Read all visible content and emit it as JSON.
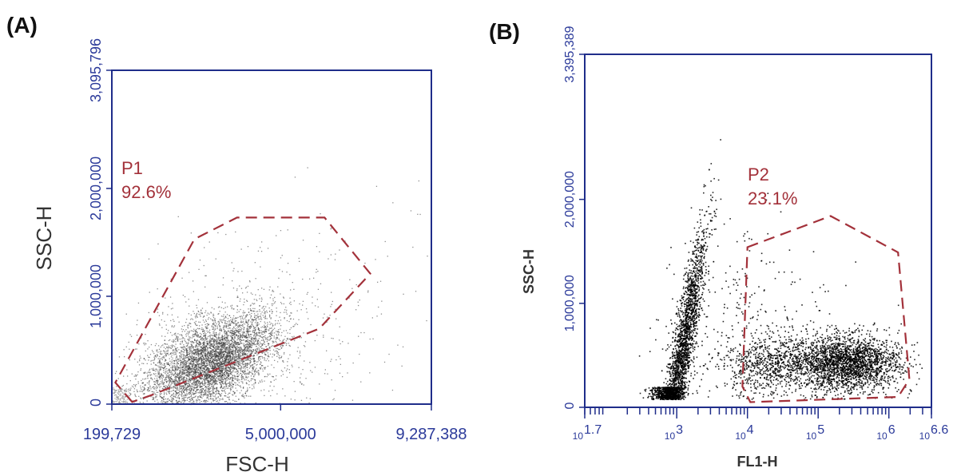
{
  "colors": {
    "axis": "#1f2d8a",
    "tick_text": "#2b3a9a",
    "gate": "#a3313a",
    "dots_a": "#333333",
    "dots_b": "#000000"
  },
  "chart_data": [
    {
      "type": "scatter",
      "panel_label": "(A)",
      "xlabel": "FSC-H",
      "ylabel": "SSC-H",
      "x_scale": "linear",
      "y_scale": "linear",
      "xlim": [
        199729,
        9287388
      ],
      "ylim": [
        0,
        3095796
      ],
      "x_ticks": [
        {
          "value": 199729,
          "label": "199,729"
        },
        {
          "value": 5000000,
          "label": "5,000,000"
        },
        {
          "value": 9287388,
          "label": "9,287,388"
        }
      ],
      "y_ticks": [
        {
          "value": 0,
          "label": "0"
        },
        {
          "value": 1000000,
          "label": "1,000,000"
        },
        {
          "value": 2000000,
          "label": "2,000,000"
        },
        {
          "value": 3095796,
          "label": "3,095,796"
        }
      ],
      "gate": {
        "name": "P1",
        "percent": "92.6%",
        "polygon": [
          [
            780000,
            20000
          ],
          [
            300000,
            200000
          ],
          [
            2550000,
            1530000
          ],
          [
            3760000,
            1730000
          ],
          [
            6250000,
            1730000
          ],
          [
            7550000,
            1210000
          ],
          [
            6100000,
            700000
          ],
          [
            1300000,
            80000
          ]
        ]
      },
      "population": {
        "center": [
          3020000,
          390000
        ],
        "spread": [
          900000,
          190000
        ],
        "events": 6500
      }
    },
    {
      "type": "scatter",
      "panel_label": "(B)",
      "xlabel": "FL1-H",
      "ylabel": "SSC-H",
      "x_scale": "log",
      "y_scale": "linear",
      "xlim": [
        50,
        4000000
      ],
      "ylim": [
        0,
        3395389
      ],
      "x_ticks": [
        {
          "value": 50,
          "base": "10",
          "exp": "1.7"
        },
        {
          "value": 1000,
          "base": "10",
          "exp": "3"
        },
        {
          "value": 10000,
          "base": "10",
          "exp": "4"
        },
        {
          "value": 100000,
          "base": "10",
          "exp": "5"
        },
        {
          "value": 1000000,
          "base": "10",
          "exp": "6"
        },
        {
          "value": 4000000,
          "base": "10",
          "exp": "6.6"
        }
      ],
      "y_ticks": [
        {
          "value": 0,
          "label": "0"
        },
        {
          "value": 1000000,
          "label": "1,000,000"
        },
        {
          "value": 2000000,
          "label": "2,000,000"
        },
        {
          "value": 3395389,
          "label": "3,395,389"
        }
      ],
      "gate": {
        "name": "P2",
        "percent": "23.1%",
        "polygon": [
          [
            10000,
            1540000
          ],
          [
            150000,
            1840000
          ],
          [
            1350000,
            1490000
          ],
          [
            1950000,
            270000
          ],
          [
            1350000,
            100000
          ],
          [
            11000,
            50000
          ],
          [
            8500,
            200000
          ]
        ]
      },
      "populations": [
        {
          "center_log10": 3.05,
          "center_y": 450000,
          "spread_log10": 0.17,
          "spread_y": 260000,
          "events": 2600,
          "tilt": 550000
        },
        {
          "center_log10": 5.4,
          "center_y": 430000,
          "spread_log10": 0.38,
          "spread_y": 130000,
          "events": 2400,
          "tilt": 0
        },
        {
          "center_log10": 4.3,
          "center_y": 420000,
          "spread_log10": 0.35,
          "spread_y": 130000,
          "events": 700,
          "tilt": 0
        },
        {
          "center_log10": 4.0,
          "center_y": 800000,
          "spread_log10": 0.6,
          "spread_y": 450000,
          "events": 350,
          "tilt": 0
        }
      ]
    }
  ]
}
